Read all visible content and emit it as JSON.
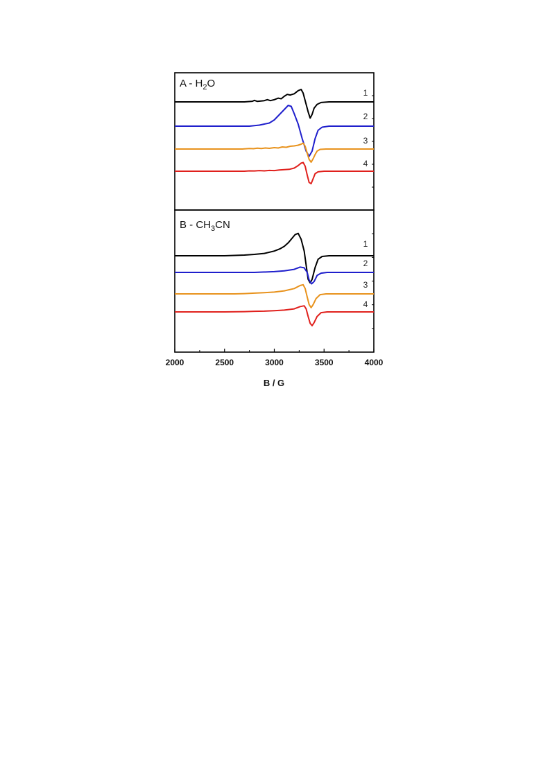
{
  "chart_data": {
    "type": "line",
    "xlabel": "B / G",
    "ylabel": "",
    "xlim": [
      2000,
      4000
    ],
    "xticks": [
      2000,
      2500,
      3000,
      3500,
      4000
    ],
    "xtick_labels": [
      "2000",
      "2500",
      "3000",
      "3500",
      "4000"
    ],
    "grid": false,
    "panels": [
      {
        "id": "A",
        "label_prefix": "A - H",
        "label_sub": "2",
        "label_suffix": "O",
        "series": [
          {
            "label": "1",
            "color": "#000000",
            "points": [
              [
                2000,
                0
              ],
              [
                2700,
                0
              ],
              [
                2780,
                0.05
              ],
              [
                2800,
                0.12
              ],
              [
                2830,
                0.04
              ],
              [
                2900,
                0.1
              ],
              [
                2930,
                0.18
              ],
              [
                2960,
                0.1
              ],
              [
                3000,
                0.18
              ],
              [
                3040,
                0.3
              ],
              [
                3070,
                0.25
              ],
              [
                3100,
                0.45
              ],
              [
                3130,
                0.6
              ],
              [
                3160,
                0.55
              ],
              [
                3200,
                0.65
              ],
              [
                3240,
                0.9
              ],
              [
                3270,
                1.0
              ],
              [
                3290,
                0.7
              ],
              [
                3310,
                0.1
              ],
              [
                3340,
                -0.8
              ],
              [
                3360,
                -1.3
              ],
              [
                3380,
                -1.0
              ],
              [
                3400,
                -0.5
              ],
              [
                3430,
                -0.2
              ],
              [
                3470,
                -0.05
              ],
              [
                3550,
                0
              ],
              [
                4000,
                0
              ]
            ]
          },
          {
            "label": "2",
            "color": "#1f1fcc",
            "points": [
              [
                2000,
                0
              ],
              [
                2750,
                0
              ],
              [
                2850,
                0.05
              ],
              [
                2950,
                0.15
              ],
              [
                3000,
                0.3
              ],
              [
                3050,
                0.55
              ],
              [
                3100,
                0.8
              ],
              [
                3140,
                1.0
              ],
              [
                3170,
                0.95
              ],
              [
                3200,
                0.6
              ],
              [
                3240,
                0.1
              ],
              [
                3280,
                -0.6
              ],
              [
                3320,
                -1.2
              ],
              [
                3350,
                -1.45
              ],
              [
                3380,
                -1.2
              ],
              [
                3410,
                -0.6
              ],
              [
                3440,
                -0.2
              ],
              [
                3480,
                -0.05
              ],
              [
                3550,
                0
              ],
              [
                4000,
                0
              ]
            ]
          },
          {
            "label": "3",
            "color": "#e8921c",
            "points": [
              [
                2000,
                0
              ],
              [
                2680,
                0
              ],
              [
                2700,
                0.03
              ],
              [
                2750,
                0.08
              ],
              [
                2790,
                0.05
              ],
              [
                2830,
                0.12
              ],
              [
                2870,
                0.08
              ],
              [
                2910,
                0.15
              ],
              [
                2950,
                0.1
              ],
              [
                3000,
                0.2
              ],
              [
                3040,
                0.15
              ],
              [
                3080,
                0.3
              ],
              [
                3120,
                0.25
              ],
              [
                3160,
                0.4
              ],
              [
                3200,
                0.45
              ],
              [
                3240,
                0.55
              ],
              [
                3270,
                0.7
              ],
              [
                3290,
                0.85
              ],
              [
                3310,
                0.4
              ],
              [
                3330,
                -0.6
              ],
              [
                3350,
                -1.5
              ],
              [
                3370,
                -1.9
              ],
              [
                3390,
                -1.4
              ],
              [
                3410,
                -0.8
              ],
              [
                3430,
                -0.3
              ],
              [
                3460,
                -0.05
              ],
              [
                3520,
                0
              ],
              [
                4000,
                0
              ]
            ]
          },
          {
            "label": "4",
            "color": "#e0201c",
            "points": [
              [
                2000,
                0
              ],
              [
                2700,
                0
              ],
              [
                2750,
                0.03
              ],
              [
                2800,
                0.02
              ],
              [
                2850,
                0.05
              ],
              [
                2900,
                0.03
              ],
              [
                2950,
                0.06
              ],
              [
                3000,
                0.05
              ],
              [
                3050,
                0.1
              ],
              [
                3100,
                0.12
              ],
              [
                3150,
                0.15
              ],
              [
                3200,
                0.25
              ],
              [
                3240,
                0.45
              ],
              [
                3270,
                0.65
              ],
              [
                3290,
                0.7
              ],
              [
                3310,
                0.4
              ],
              [
                3330,
                -0.3
              ],
              [
                3350,
                -0.9
              ],
              [
                3370,
                -1.0
              ],
              [
                3390,
                -0.6
              ],
              [
                3410,
                -0.2
              ],
              [
                3440,
                -0.05
              ],
              [
                3500,
                0
              ],
              [
                4000,
                0
              ]
            ]
          }
        ]
      },
      {
        "id": "B",
        "label_prefix": "B - CH",
        "label_sub": "3",
        "label_suffix": "CN",
        "series": [
          {
            "label": "1",
            "color": "#000000",
            "points": [
              [
                2000,
                0
              ],
              [
                2500,
                0
              ],
              [
                2700,
                0.03
              ],
              [
                2800,
                0.06
              ],
              [
                2900,
                0.1
              ],
              [
                3000,
                0.2
              ],
              [
                3060,
                0.3
              ],
              [
                3100,
                0.4
              ],
              [
                3140,
                0.55
              ],
              [
                3180,
                0.75
              ],
              [
                3210,
                0.9
              ],
              [
                3240,
                0.95
              ],
              [
                3270,
                0.7
              ],
              [
                3300,
                0.2
              ],
              [
                3320,
                -0.4
              ],
              [
                3340,
                -1.0
              ],
              [
                3360,
                -1.15
              ],
              [
                3380,
                -1.0
              ],
              [
                3410,
                -0.5
              ],
              [
                3440,
                -0.15
              ],
              [
                3480,
                -0.03
              ],
              [
                3550,
                0
              ],
              [
                4000,
                0
              ]
            ]
          },
          {
            "label": "2",
            "color": "#1f1fcc",
            "points": [
              [
                2000,
                0
              ],
              [
                2800,
                0
              ],
              [
                3000,
                0.05
              ],
              [
                3100,
                0.1
              ],
              [
                3200,
                0.2
              ],
              [
                3260,
                0.35
              ],
              [
                3300,
                0.3
              ],
              [
                3330,
                0
              ],
              [
                3350,
                -0.5
              ],
              [
                3375,
                -0.75
              ],
              [
                3400,
                -0.6
              ],
              [
                3430,
                -0.2
              ],
              [
                3470,
                -0.05
              ],
              [
                3530,
                0
              ],
              [
                4000,
                0
              ]
            ]
          },
          {
            "label": "3",
            "color": "#e8921c",
            "points": [
              [
                2000,
                0
              ],
              [
                2600,
                0
              ],
              [
                2700,
                0.02
              ],
              [
                2800,
                0.05
              ],
              [
                2900,
                0.08
              ],
              [
                3000,
                0.12
              ],
              [
                3100,
                0.2
              ],
              [
                3200,
                0.35
              ],
              [
                3260,
                0.55
              ],
              [
                3290,
                0.6
              ],
              [
                3310,
                0.35
              ],
              [
                3330,
                -0.2
              ],
              [
                3350,
                -0.7
              ],
              [
                3370,
                -0.9
              ],
              [
                3390,
                -0.7
              ],
              [
                3420,
                -0.3
              ],
              [
                3460,
                -0.05
              ],
              [
                3520,
                0
              ],
              [
                4000,
                0
              ]
            ]
          },
          {
            "label": "4",
            "color": "#e0201c",
            "points": [
              [
                2000,
                0
              ],
              [
                2500,
                0
              ],
              [
                2700,
                0.02
              ],
              [
                2800,
                0.04
              ],
              [
                2900,
                0.05
              ],
              [
                3000,
                0.08
              ],
              [
                3100,
                0.12
              ],
              [
                3200,
                0.2
              ],
              [
                3260,
                0.35
              ],
              [
                3300,
                0.4
              ],
              [
                3320,
                0.2
              ],
              [
                3340,
                -0.3
              ],
              [
                3360,
                -0.75
              ],
              [
                3380,
                -0.9
              ],
              [
                3400,
                -0.7
              ],
              [
                3430,
                -0.3
              ],
              [
                3470,
                -0.05
              ],
              [
                3530,
                0
              ],
              [
                4000,
                0
              ]
            ]
          }
        ]
      }
    ]
  }
}
